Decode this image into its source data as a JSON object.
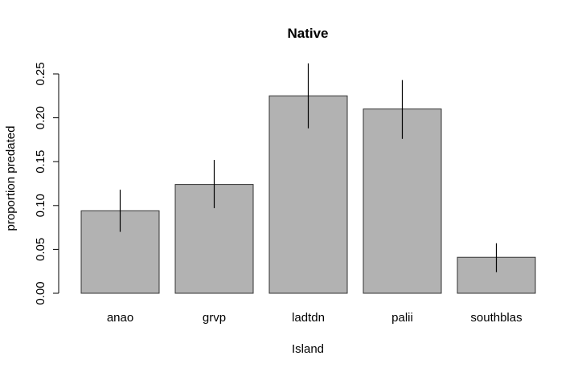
{
  "chart_data": {
    "type": "bar",
    "title": "Native",
    "xlabel": "Island",
    "ylabel": "proportion predated",
    "categories": [
      "anao",
      "grvp",
      "ladtdn",
      "palii",
      "southblas"
    ],
    "values": [
      0.094,
      0.124,
      0.225,
      0.21,
      0.041
    ],
    "error_low": [
      0.07,
      0.097,
      0.188,
      0.176,
      0.024
    ],
    "error_high": [
      0.118,
      0.152,
      0.262,
      0.243,
      0.057
    ],
    "yticks": [
      "0.00",
      "0.05",
      "0.10",
      "0.15",
      "0.20",
      "0.25"
    ],
    "ylim": [
      0,
      0.25
    ],
    "grid": false,
    "colors": {
      "bar_fill": "#b2b2b2",
      "bar_stroke": "#333333"
    }
  }
}
